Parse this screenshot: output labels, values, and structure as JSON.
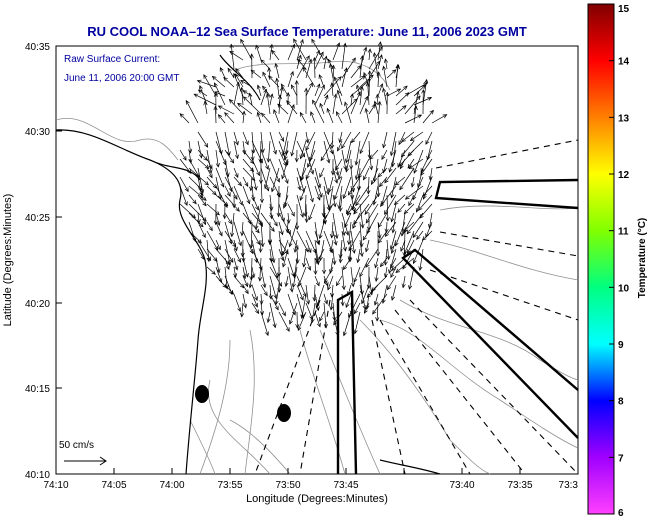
{
  "title": "RU COOL  NOAA–12  Sea Surface Temperature:  June 11, 2006 2023 GMT",
  "annotation": {
    "line1": "Raw Surface Current:",
    "line2": "June 11, 2006 20:00 GMT"
  },
  "scale_label": "50 cm/s",
  "axes": {
    "xlabel": "Longitude (Degrees:Minutes)",
    "ylabel": "Latitude (Degrees:Minutes)",
    "x_ticks": [
      "74:10",
      "74:05",
      "74:00",
      "73:55",
      "73:50",
      "73:45",
      "73:40",
      "73:35",
      "73:3"
    ],
    "y_ticks": [
      "40:35",
      "40:30",
      "40:25",
      "40:20",
      "40:15",
      "40:10"
    ]
  },
  "colorbar": {
    "label": "Temperature (°C)",
    "ticks": [
      "15",
      "14",
      "13",
      "12",
      "11",
      "10",
      "9",
      "8",
      "7",
      "6"
    ],
    "range": [
      6,
      15
    ],
    "colors": [
      "#ff40ff",
      "#a000ff",
      "#0000ff",
      "#00ffff",
      "#00ff80",
      "#80ff00",
      "#ffff00",
      "#ff8000",
      "#ff0000",
      "#800000"
    ]
  },
  "colors": {
    "title": "#0000a0",
    "annotation": "#0000a0",
    "land_outline": "#000000",
    "contours": "#888888",
    "vectors": "#000000"
  }
}
